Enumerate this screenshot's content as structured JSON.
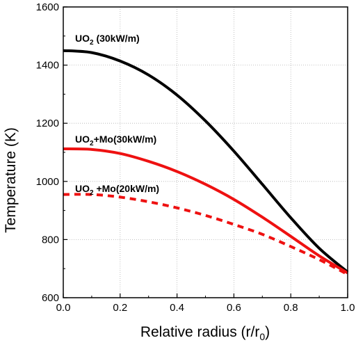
{
  "chart_data": {
    "type": "line",
    "title": "",
    "xlabel": "Relative radius (r/r",
    "xlabel_sub": "0",
    "xlabel_end": ")",
    "ylabel": "Temperature (K)",
    "xlim": [
      0.0,
      1.0
    ],
    "ylim": [
      600,
      1600
    ],
    "xticks": [
      0.0,
      0.2,
      0.4,
      0.6,
      0.8,
      1.0
    ],
    "xtick_labels": [
      "0.0",
      "0.2",
      "0.4",
      "0.6",
      "0.8",
      "1.0"
    ],
    "yticks": [
      600,
      800,
      1000,
      1200,
      1400,
      1600
    ],
    "ytick_labels": [
      "600",
      "800",
      "1000",
      "1200",
      "1400",
      "1600"
    ],
    "grid": true,
    "series": [
      {
        "label_parts": [
          "UO",
          "2",
          " (30kW/m)"
        ],
        "color": "#000000",
        "style": "solid",
        "x": [
          0.0,
          0.1,
          0.2,
          0.3,
          0.4,
          0.5,
          0.6,
          0.7,
          0.8,
          0.9,
          1.0
        ],
        "y": [
          1450,
          1443,
          1414,
          1366,
          1297,
          1208,
          1104,
          990,
          875,
          770,
          688
        ]
      },
      {
        "label_parts": [
          "UO",
          "2",
          "+Mo(30kW/m)"
        ],
        "color": "#ee1111",
        "style": "solid",
        "x": [
          0.0,
          0.1,
          0.2,
          0.3,
          0.4,
          0.5,
          0.6,
          0.7,
          0.8,
          0.9,
          1.0
        ],
        "y": [
          1112,
          1110,
          1096,
          1069,
          1034,
          990,
          938,
          877,
          811,
          744,
          685
        ]
      },
      {
        "label_parts": [
          "UO",
          "2",
          " +Mo(20kW/m)"
        ],
        "color": "#ee1111",
        "style": "dashed",
        "x": [
          0.0,
          0.1,
          0.2,
          0.3,
          0.4,
          0.5,
          0.6,
          0.7,
          0.8,
          0.9,
          1.0
        ],
        "y": [
          955,
          955,
          946,
          930,
          909,
          883,
          852,
          818,
          776,
          731,
          680
        ]
      }
    ]
  }
}
